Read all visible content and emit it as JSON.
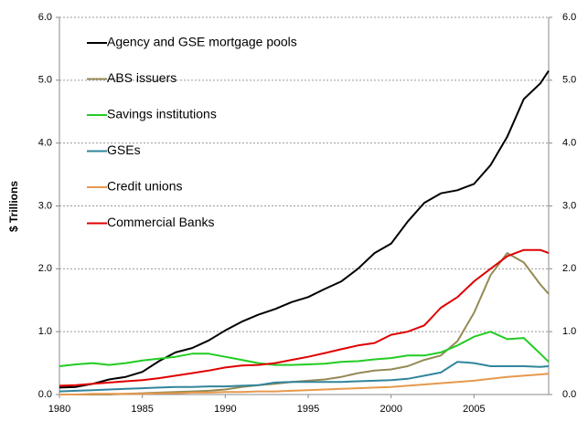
{
  "chart_data": {
    "type": "line",
    "y_label": "$ Trillions",
    "x": [
      1980,
      1981,
      1982,
      1983,
      1984,
      1985,
      1986,
      1987,
      1988,
      1989,
      1990,
      1991,
      1992,
      1993,
      1994,
      1995,
      1996,
      1997,
      1998,
      1999,
      2000,
      2001,
      2002,
      2003,
      2004,
      2005,
      2006,
      2007,
      2008,
      2009,
      2009.5
    ],
    "xlim": [
      1980,
      2009.5
    ],
    "xticks": [
      1980,
      1985,
      1990,
      1995,
      2000,
      2005
    ],
    "ylim": [
      0,
      6
    ],
    "yticks": [
      {
        "value": 0,
        "label": "0.0"
      },
      {
        "value": 1,
        "label": "1.0"
      },
      {
        "value": 2,
        "label": "2.0"
      },
      {
        "value": 3,
        "label": "3.0"
      },
      {
        "value": 4,
        "label": "4.0"
      },
      {
        "value": 5,
        "label": "5.0"
      },
      {
        "value": 6,
        "label": "6.0"
      }
    ],
    "y2lim": [
      0,
      6
    ],
    "y2ticks": [
      {
        "value": 0,
        "label": "0.0"
      },
      {
        "value": 1,
        "label": "1.0"
      },
      {
        "value": 2,
        "label": "2.0"
      },
      {
        "value": 3,
        "label": "3.0"
      },
      {
        "value": 4,
        "label": "4.0"
      },
      {
        "value": 5,
        "label": "5.0"
      },
      {
        "value": 6,
        "label": "6.0"
      }
    ],
    "grid": true,
    "legend": "upper left",
    "series": [
      {
        "name": "Agency and GSE mortgage pools",
        "color": "#000000",
        "values": [
          0.11,
          0.12,
          0.17,
          0.24,
          0.28,
          0.36,
          0.53,
          0.67,
          0.74,
          0.86,
          1.02,
          1.16,
          1.27,
          1.36,
          1.47,
          1.55,
          1.68,
          1.8,
          2.0,
          2.25,
          2.4,
          2.75,
          3.05,
          3.2,
          3.25,
          3.35,
          3.65,
          4.1,
          4.7,
          4.95,
          5.15
        ]
      },
      {
        "name": "ABS issuers",
        "color": "#948a54",
        "values": [
          0,
          0,
          0,
          0,
          0.01,
          0.02,
          0.03,
          0.04,
          0.05,
          0.06,
          0.08,
          0.12,
          0.15,
          0.17,
          0.2,
          0.22,
          0.24,
          0.28,
          0.34,
          0.38,
          0.4,
          0.45,
          0.55,
          0.62,
          0.85,
          1.3,
          1.9,
          2.25,
          2.1,
          1.75,
          1.6
        ]
      },
      {
        "name": "Savings institutions",
        "color": "#22cc22",
        "values": [
          0.45,
          0.48,
          0.5,
          0.47,
          0.5,
          0.54,
          0.57,
          0.6,
          0.65,
          0.65,
          0.6,
          0.55,
          0.5,
          0.47,
          0.47,
          0.48,
          0.49,
          0.52,
          0.53,
          0.56,
          0.58,
          0.62,
          0.62,
          0.67,
          0.78,
          0.92,
          1.0,
          0.88,
          0.9,
          0.65,
          0.52
        ]
      },
      {
        "name": "GSEs",
        "color": "#31859c",
        "values": [
          0.05,
          0.06,
          0.07,
          0.08,
          0.09,
          0.1,
          0.11,
          0.12,
          0.12,
          0.13,
          0.13,
          0.14,
          0.15,
          0.19,
          0.2,
          0.2,
          0.2,
          0.2,
          0.21,
          0.22,
          0.23,
          0.25,
          0.3,
          0.35,
          0.52,
          0.5,
          0.45,
          0.45,
          0.45,
          0.44,
          0.45
        ]
      },
      {
        "name": "Credit unions",
        "color": "#e6994d",
        "values": [
          0,
          0,
          0.01,
          0.01,
          0.01,
          0.01,
          0.02,
          0.02,
          0.03,
          0.03,
          0.04,
          0.04,
          0.05,
          0.05,
          0.06,
          0.07,
          0.08,
          0.09,
          0.1,
          0.11,
          0.12,
          0.14,
          0.16,
          0.18,
          0.2,
          0.22,
          0.25,
          0.28,
          0.3,
          0.32,
          0.33
        ]
      },
      {
        "name": "Commercial Banks",
        "color": "#e00000",
        "values": [
          0.14,
          0.15,
          0.17,
          0.19,
          0.21,
          0.23,
          0.26,
          0.3,
          0.34,
          0.38,
          0.43,
          0.46,
          0.47,
          0.5,
          0.55,
          0.6,
          0.66,
          0.72,
          0.78,
          0.82,
          0.95,
          1.0,
          1.1,
          1.38,
          1.55,
          1.8,
          2.0,
          2.2,
          2.3,
          2.3,
          2.25
        ]
      }
    ]
  }
}
